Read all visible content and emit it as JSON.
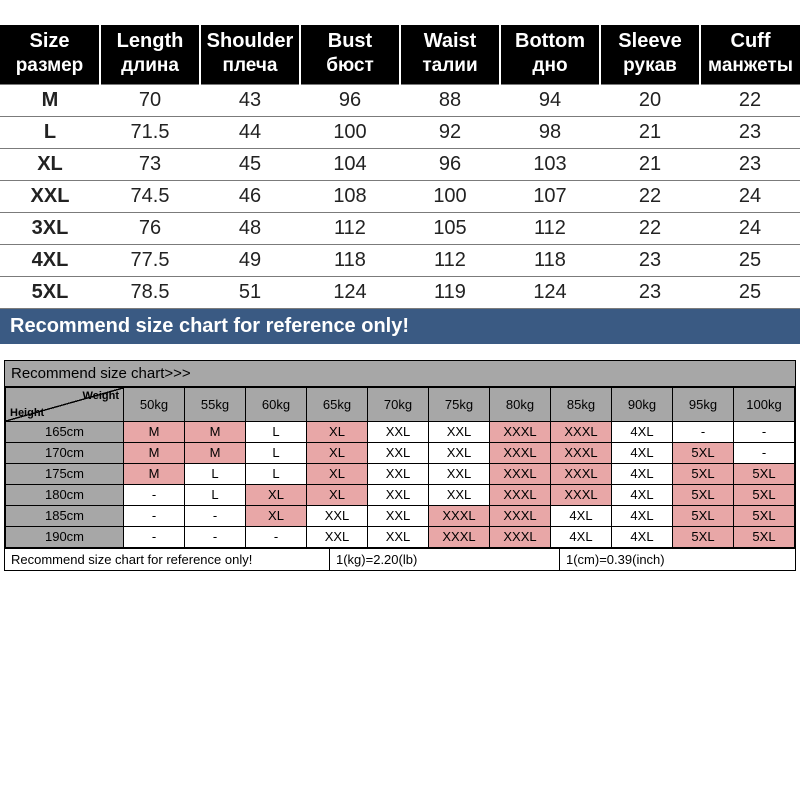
{
  "size_chart": {
    "type": "table",
    "header_bg": "#000000",
    "header_fg": "#ffffff",
    "row_border_color": "#7b7b7b",
    "note_bg": "#3a5a83",
    "columns": [
      {
        "en": "Size",
        "ru": "размер"
      },
      {
        "en": "Length",
        "ru": "длина"
      },
      {
        "en": "Shoulder",
        "ru": "плеча"
      },
      {
        "en": "Bust",
        "ru": "бюст"
      },
      {
        "en": "Waist",
        "ru": "талии"
      },
      {
        "en": "Bottom",
        "ru": "дно"
      },
      {
        "en": "Sleeve",
        "ru": "рукав"
      },
      {
        "en": "Cuff",
        "ru": "манжеты"
      }
    ],
    "rows": [
      [
        "M",
        "70",
        "43",
        "96",
        "88",
        "94",
        "20",
        "22"
      ],
      [
        "L",
        "71.5",
        "44",
        "100",
        "92",
        "98",
        "21",
        "23"
      ],
      [
        "XL",
        "73",
        "45",
        "104",
        "96",
        "103",
        "21",
        "23"
      ],
      [
        "XXL",
        "74.5",
        "46",
        "108",
        "100",
        "107",
        "22",
        "24"
      ],
      [
        "3XL",
        "76",
        "48",
        "112",
        "105",
        "112",
        "22",
        "24"
      ],
      [
        "4XL",
        "77.5",
        "49",
        "118",
        "112",
        "118",
        "23",
        "25"
      ],
      [
        "5XL",
        "78.5",
        "51",
        "124",
        "119",
        "124",
        "23",
        "25"
      ]
    ],
    "note": "Recommend size chart for reference only!"
  },
  "recommend": {
    "type": "table",
    "title": "Recommend size chart>>>",
    "corner": {
      "height_label": "Height",
      "weight_label": "Weight"
    },
    "header_bg": "#a7a7a7",
    "highlight_bg": "#e8a7a7",
    "weights": [
      "50kg",
      "55kg",
      "60kg",
      "65kg",
      "70kg",
      "75kg",
      "80kg",
      "85kg",
      "90kg",
      "95kg",
      "100kg"
    ],
    "heights": [
      "165cm",
      "170cm",
      "175cm",
      "180cm",
      "185cm",
      "190cm"
    ],
    "cells": [
      [
        {
          "v": "M",
          "p": true
        },
        {
          "v": "M",
          "p": true
        },
        {
          "v": "L",
          "p": false
        },
        {
          "v": "XL",
          "p": true
        },
        {
          "v": "XXL",
          "p": false
        },
        {
          "v": "XXL",
          "p": false
        },
        {
          "v": "XXXL",
          "p": true
        },
        {
          "v": "XXXL",
          "p": true
        },
        {
          "v": "4XL",
          "p": false
        },
        {
          "v": "-",
          "p": false
        },
        {
          "v": "-",
          "p": false
        }
      ],
      [
        {
          "v": "M",
          "p": true
        },
        {
          "v": "M",
          "p": true
        },
        {
          "v": "L",
          "p": false
        },
        {
          "v": "XL",
          "p": true
        },
        {
          "v": "XXL",
          "p": false
        },
        {
          "v": "XXL",
          "p": false
        },
        {
          "v": "XXXL",
          "p": true
        },
        {
          "v": "XXXL",
          "p": true
        },
        {
          "v": "4XL",
          "p": false
        },
        {
          "v": "5XL",
          "p": true
        },
        {
          "v": "-",
          "p": false
        }
      ],
      [
        {
          "v": "M",
          "p": true
        },
        {
          "v": "L",
          "p": false
        },
        {
          "v": "L",
          "p": false
        },
        {
          "v": "XL",
          "p": true
        },
        {
          "v": "XXL",
          "p": false
        },
        {
          "v": "XXL",
          "p": false
        },
        {
          "v": "XXXL",
          "p": true
        },
        {
          "v": "XXXL",
          "p": true
        },
        {
          "v": "4XL",
          "p": false
        },
        {
          "v": "5XL",
          "p": true
        },
        {
          "v": "5XL",
          "p": true
        }
      ],
      [
        {
          "v": "-",
          "p": false
        },
        {
          "v": "L",
          "p": false
        },
        {
          "v": "XL",
          "p": true
        },
        {
          "v": "XL",
          "p": true
        },
        {
          "v": "XXL",
          "p": false
        },
        {
          "v": "XXL",
          "p": false
        },
        {
          "v": "XXXL",
          "p": true
        },
        {
          "v": "XXXL",
          "p": true
        },
        {
          "v": "4XL",
          "p": false
        },
        {
          "v": "5XL",
          "p": true
        },
        {
          "v": "5XL",
          "p": true
        }
      ],
      [
        {
          "v": "-",
          "p": false
        },
        {
          "v": "-",
          "p": false
        },
        {
          "v": "XL",
          "p": true
        },
        {
          "v": "XXL",
          "p": false
        },
        {
          "v": "XXL",
          "p": false
        },
        {
          "v": "XXXL",
          "p": true
        },
        {
          "v": "XXXL",
          "p": true
        },
        {
          "v": "4XL",
          "p": false
        },
        {
          "v": "4XL",
          "p": false
        },
        {
          "v": "5XL",
          "p": true
        },
        {
          "v": "5XL",
          "p": true
        }
      ],
      [
        {
          "v": "-",
          "p": false
        },
        {
          "v": "-",
          "p": false
        },
        {
          "v": "-",
          "p": false
        },
        {
          "v": "XXL",
          "p": false
        },
        {
          "v": "XXL",
          "p": false
        },
        {
          "v": "XXXL",
          "p": true
        },
        {
          "v": "XXXL",
          "p": true
        },
        {
          "v": "4XL",
          "p": false
        },
        {
          "v": "4XL",
          "p": false
        },
        {
          "v": "5XL",
          "p": true
        },
        {
          "v": "5XL",
          "p": true
        }
      ]
    ],
    "footer": {
      "note": "Recommend size chart for reference only!",
      "kg": "1(kg)=2.20(lb)",
      "cm": "1(cm)=0.39(inch)"
    },
    "footer_widths": [
      "325px",
      "230px",
      "auto"
    ]
  }
}
